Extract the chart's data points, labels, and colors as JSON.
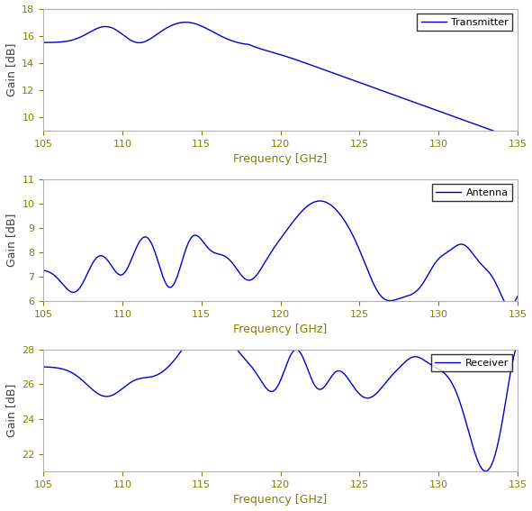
{
  "line_color": "#0000CC",
  "xlabel": "Frequency [GHz]",
  "ylabel": "Gain [dB]",
  "xmin": 105,
  "xmax": 135,
  "xticks": [
    105,
    110,
    115,
    120,
    125,
    130,
    135
  ],
  "transmitter_label": "Transmitter",
  "transmitter_ylim": [
    9,
    18
  ],
  "transmitter_yticks": [
    10,
    12,
    14,
    16,
    18
  ],
  "antenna_label": "Antenna",
  "antenna_ylim": [
    6,
    11
  ],
  "antenna_yticks": [
    6,
    7,
    8,
    9,
    10,
    11
  ],
  "receiver_label": "Receiver",
  "receiver_ylim": [
    21,
    28
  ],
  "receiver_yticks": [
    22,
    24,
    26,
    28
  ],
  "tick_color": "#808000",
  "label_color": "#808000",
  "ylabel_color": "#404040",
  "spine_color": "#b0b0b0",
  "bg_color": "#ffffff"
}
